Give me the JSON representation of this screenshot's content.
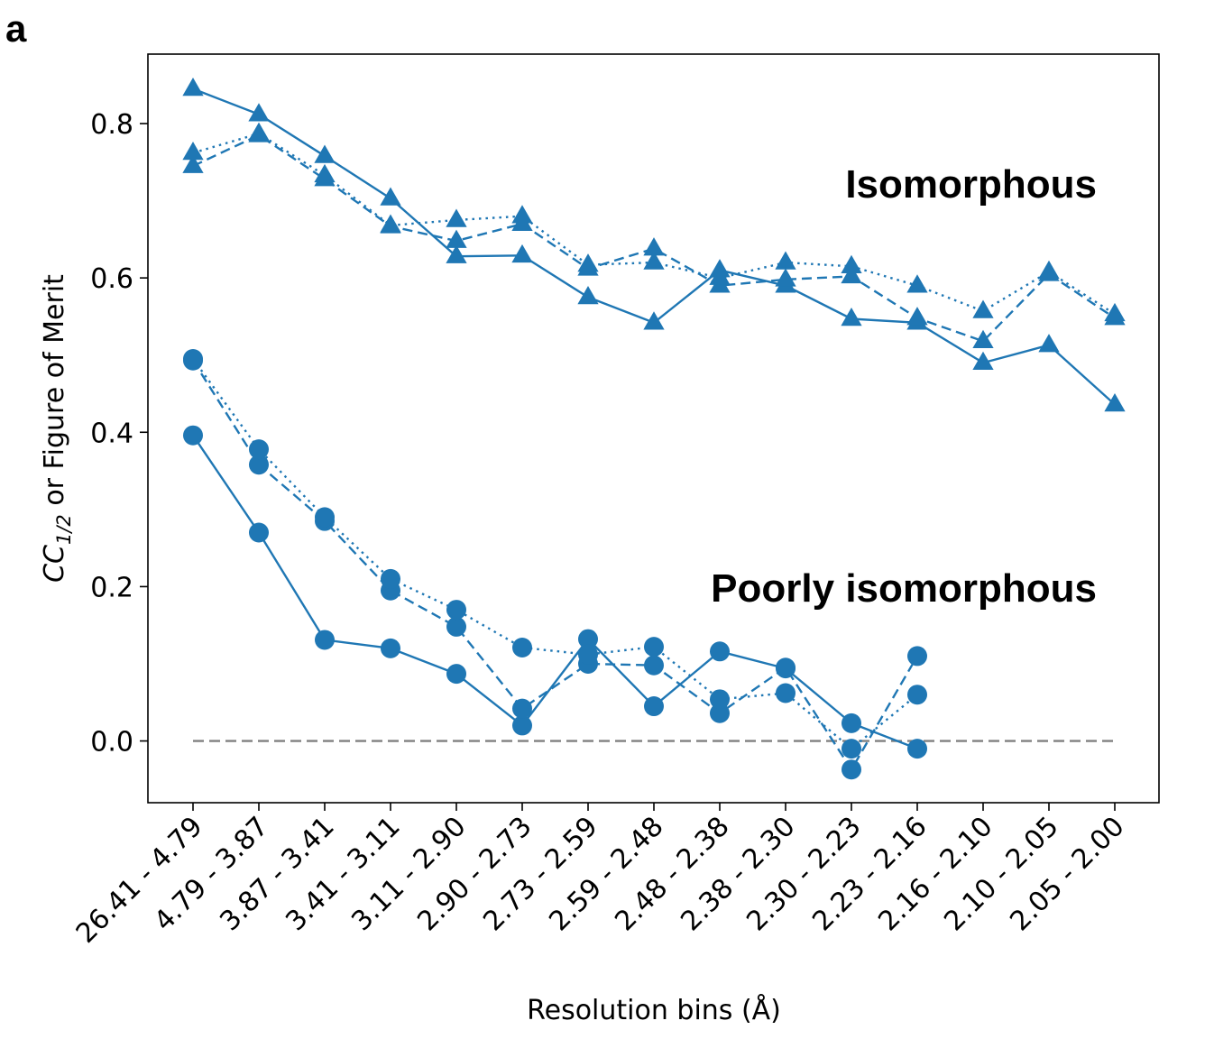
{
  "panel_label": "a",
  "chart_data": {
    "type": "line",
    "xlabel": "Resolution bins (Å)",
    "ylabel": {
      "prefix": "CC",
      "subscript": "1/2",
      "suffix": " or Figure of Merit"
    },
    "ylim": [
      -0.08,
      0.89
    ],
    "yticks": [
      0.0,
      0.2,
      0.4,
      0.6,
      0.8
    ],
    "ytick_labels": [
      "0.0",
      "0.2",
      "0.4",
      "0.6",
      "0.8"
    ],
    "categories": [
      "26.41 - 4.79",
      "4.79 - 3.87",
      "3.87 - 3.41",
      "3.41 - 3.11",
      "3.11 - 2.90",
      "2.90 - 2.73",
      "2.73 - 2.59",
      "2.59 - 2.48",
      "2.48 - 2.38",
      "2.38 - 2.30",
      "2.30 - 2.23",
      "2.23 - 2.16",
      "2.16 - 2.10",
      "2.10 - 2.05",
      "2.05 - 2.00"
    ],
    "grid": false,
    "color": "#1f77b4",
    "reference_line": {
      "y": 0.0,
      "style": "dashed",
      "color": "#808080"
    },
    "annotations": [
      "Isomorphous",
      "Poorly isomorphous"
    ],
    "series": [
      {
        "group": "Isomorphous",
        "marker": "triangle",
        "linestyle": "solid",
        "values": [
          0.845,
          0.812,
          0.758,
          0.703,
          0.628,
          0.629,
          0.575,
          0.542,
          0.61,
          0.59,
          0.547,
          0.542,
          0.49,
          0.513,
          0.436
        ]
      },
      {
        "group": "Isomorphous",
        "marker": "triangle",
        "linestyle": "dashed",
        "values": [
          0.745,
          0.785,
          0.728,
          0.667,
          0.648,
          0.67,
          0.612,
          0.638,
          0.59,
          0.598,
          0.602,
          0.548,
          0.518,
          0.605,
          0.548
        ]
      },
      {
        "group": "Isomorphous",
        "marker": "triangle",
        "linestyle": "dotted",
        "values": [
          0.762,
          0.787,
          0.733,
          0.668,
          0.675,
          0.68,
          0.617,
          0.62,
          0.6,
          0.62,
          0.615,
          0.59,
          0.557,
          0.608,
          0.553
        ]
      },
      {
        "group": "Poorly isomorphous",
        "marker": "circle",
        "linestyle": "solid",
        "values": [
          0.396,
          0.27,
          0.131,
          0.12,
          0.087,
          0.02,
          0.132,
          0.045,
          0.116,
          0.094,
          0.023,
          -0.01,
          null,
          null,
          null
        ]
      },
      {
        "group": "Poorly isomorphous",
        "marker": "circle",
        "linestyle": "dashed",
        "values": [
          0.493,
          0.358,
          0.285,
          0.195,
          0.148,
          0.042,
          0.1,
          0.098,
          0.036,
          0.095,
          -0.037,
          0.11,
          null,
          null,
          null
        ]
      },
      {
        "group": "Poorly isomorphous",
        "marker": "circle",
        "linestyle": "dotted",
        "values": [
          0.495,
          0.378,
          0.29,
          0.21,
          0.17,
          0.121,
          0.112,
          0.122,
          0.054,
          0.062,
          -0.01,
          0.06,
          null,
          null,
          null
        ]
      }
    ]
  }
}
